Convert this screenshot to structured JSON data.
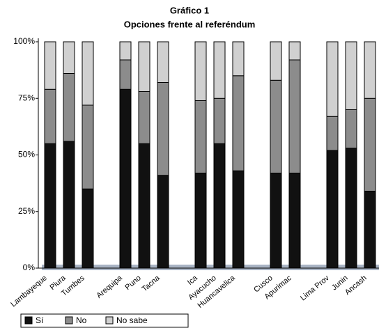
{
  "chart_data": {
    "type": "stacked_bar",
    "title": "Gráfico 1",
    "subtitle": "Opciones frente al referéndum",
    "categories": [
      "Lambayeque",
      "Piura",
      "Tumbes",
      null,
      "Arequipa",
      "Puno",
      "Tacna",
      null,
      "Ica",
      "Ayacucho",
      "Huancavelica",
      null,
      "Cusco",
      "Apurimac",
      null,
      "Lima Prov",
      "Junin",
      "Ancash"
    ],
    "series": [
      {
        "name": "Sí",
        "color": "#111111",
        "values": [
          55,
          56,
          35,
          null,
          79,
          55,
          41,
          null,
          42,
          55,
          43,
          null,
          42,
          42,
          null,
          52,
          53,
          34
        ]
      },
      {
        "name": "No",
        "color": "#8c8c8c",
        "values": [
          24,
          30,
          37,
          null,
          13,
          23,
          41,
          null,
          32,
          20,
          42,
          null,
          41,
          50,
          null,
          15,
          17,
          41
        ]
      },
      {
        "name": "No sabe",
        "color": "#d0d0d0",
        "values": [
          21,
          14,
          28,
          null,
          8,
          22,
          18,
          null,
          26,
          25,
          15,
          null,
          17,
          8,
          null,
          33,
          30,
          25
        ]
      }
    ],
    "ylim": [
      0,
      100
    ],
    "yticks": [
      {
        "value": 0,
        "label": "0%"
      },
      {
        "value": 25,
        "label": "25%"
      },
      {
        "value": 50,
        "label": "50%"
      },
      {
        "value": 75,
        "label": "75%"
      },
      {
        "value": 100,
        "label": "100%"
      }
    ],
    "grid": false,
    "legend": "bottom"
  }
}
